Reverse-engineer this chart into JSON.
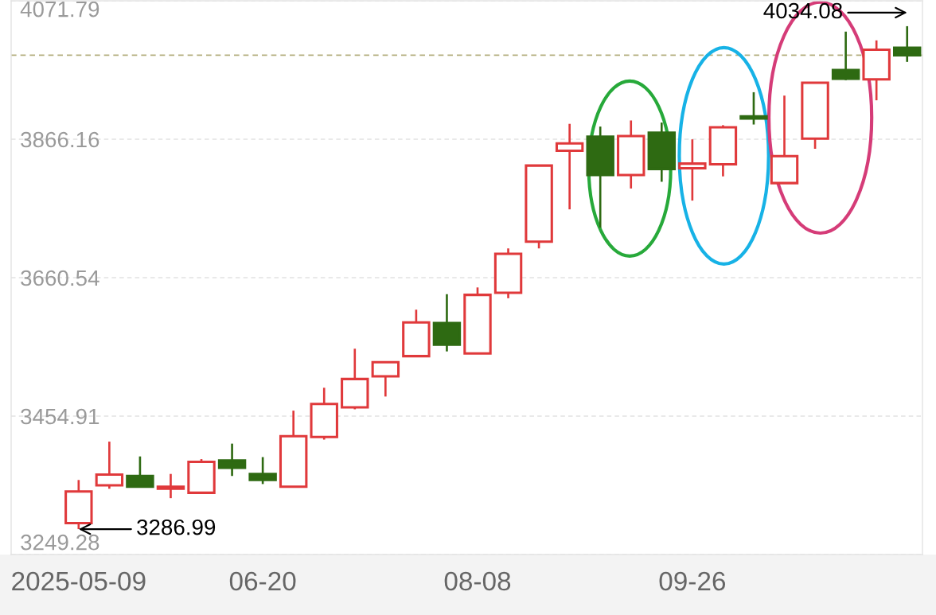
{
  "chart_data": {
    "type": "candlestick",
    "categories": [
      "2025-05-09",
      null,
      null,
      null,
      null,
      null,
      "06-20",
      null,
      null,
      null,
      null,
      null,
      null,
      "08-08",
      null,
      null,
      null,
      null,
      null,
      null,
      "09-26",
      null,
      null,
      null,
      null,
      null,
      null,
      null
    ],
    "ohlc": [
      [
        3296,
        3360,
        3286.99,
        3343
      ],
      [
        3352,
        3417,
        3347,
        3368
      ],
      [
        3366,
        3395,
        3350,
        3350
      ],
      [
        3347,
        3369,
        3333,
        3350
      ],
      [
        3341,
        3391,
        3341,
        3387
      ],
      [
        3389,
        3414,
        3366,
        3378
      ],
      [
        3369,
        3394,
        3354,
        3360
      ],
      [
        3350,
        3463,
        3349,
        3425
      ],
      [
        3424,
        3497,
        3420,
        3473
      ],
      [
        3468,
        3555,
        3465,
        3510
      ],
      [
        3514,
        3535,
        3484,
        3535
      ],
      [
        3544,
        3613,
        3544,
        3594
      ],
      [
        3593,
        3636,
        3551,
        3561
      ],
      [
        3548,
        3646,
        3548,
        3635
      ],
      [
        3638,
        3704,
        3630,
        3696
      ],
      [
        3714,
        3827,
        3704,
        3827
      ],
      [
        3849,
        3889,
        3762,
        3860
      ],
      [
        3870,
        3885,
        3735,
        3813
      ],
      [
        3813,
        3894,
        3793,
        3871
      ],
      [
        3876,
        3891,
        3803,
        3822
      ],
      [
        3823,
        3866,
        3775,
        3830
      ],
      [
        3829,
        3887,
        3811,
        3884
      ],
      [
        3900,
        3936,
        3888,
        3897
      ],
      [
        3801,
        3931,
        3801,
        3841
      ],
      [
        3867,
        3950,
        3852,
        3950
      ],
      [
        3969,
        4026,
        3954,
        3956
      ],
      [
        3955,
        4013,
        3924,
        3999
      ],
      [
        4002,
        4034.08,
        3981,
        3991
      ]
    ],
    "colors": [
      "#e0393b",
      "#e0393b",
      "#2e6a12",
      "#e0393b",
      "#e0393b",
      "#2e6a12",
      "#2e6a12",
      "#e0393b",
      "#e0393b",
      "#e0393b",
      "#e0393b",
      "#e0393b",
      "#2e6a12",
      "#e0393b",
      "#e0393b",
      "#e0393b",
      "#e0393b",
      "#2e6a12",
      "#e0393b",
      "#2e6a12",
      "#e0393b",
      "#e0393b",
      "#2e6a12",
      "#e0393b",
      "#e0393b",
      "#2e6a12",
      "#e0393b",
      "#2e6a12"
    ],
    "ylim": [
      3249.28,
      4071.79
    ],
    "yticks": [
      3249.28,
      3454.91,
      3660.54,
      3866.16,
      4071.79
    ],
    "grid": "y",
    "ref_lines": [
      {
        "axis": "y",
        "value": 3991,
        "color": "#b3ae7e",
        "line_style": "dashed"
      }
    ],
    "annotations": [
      {
        "text": "3286.99",
        "x": "2025-05-09",
        "y": 3286.99
      },
      "4034.08"
    ]
  }
}
